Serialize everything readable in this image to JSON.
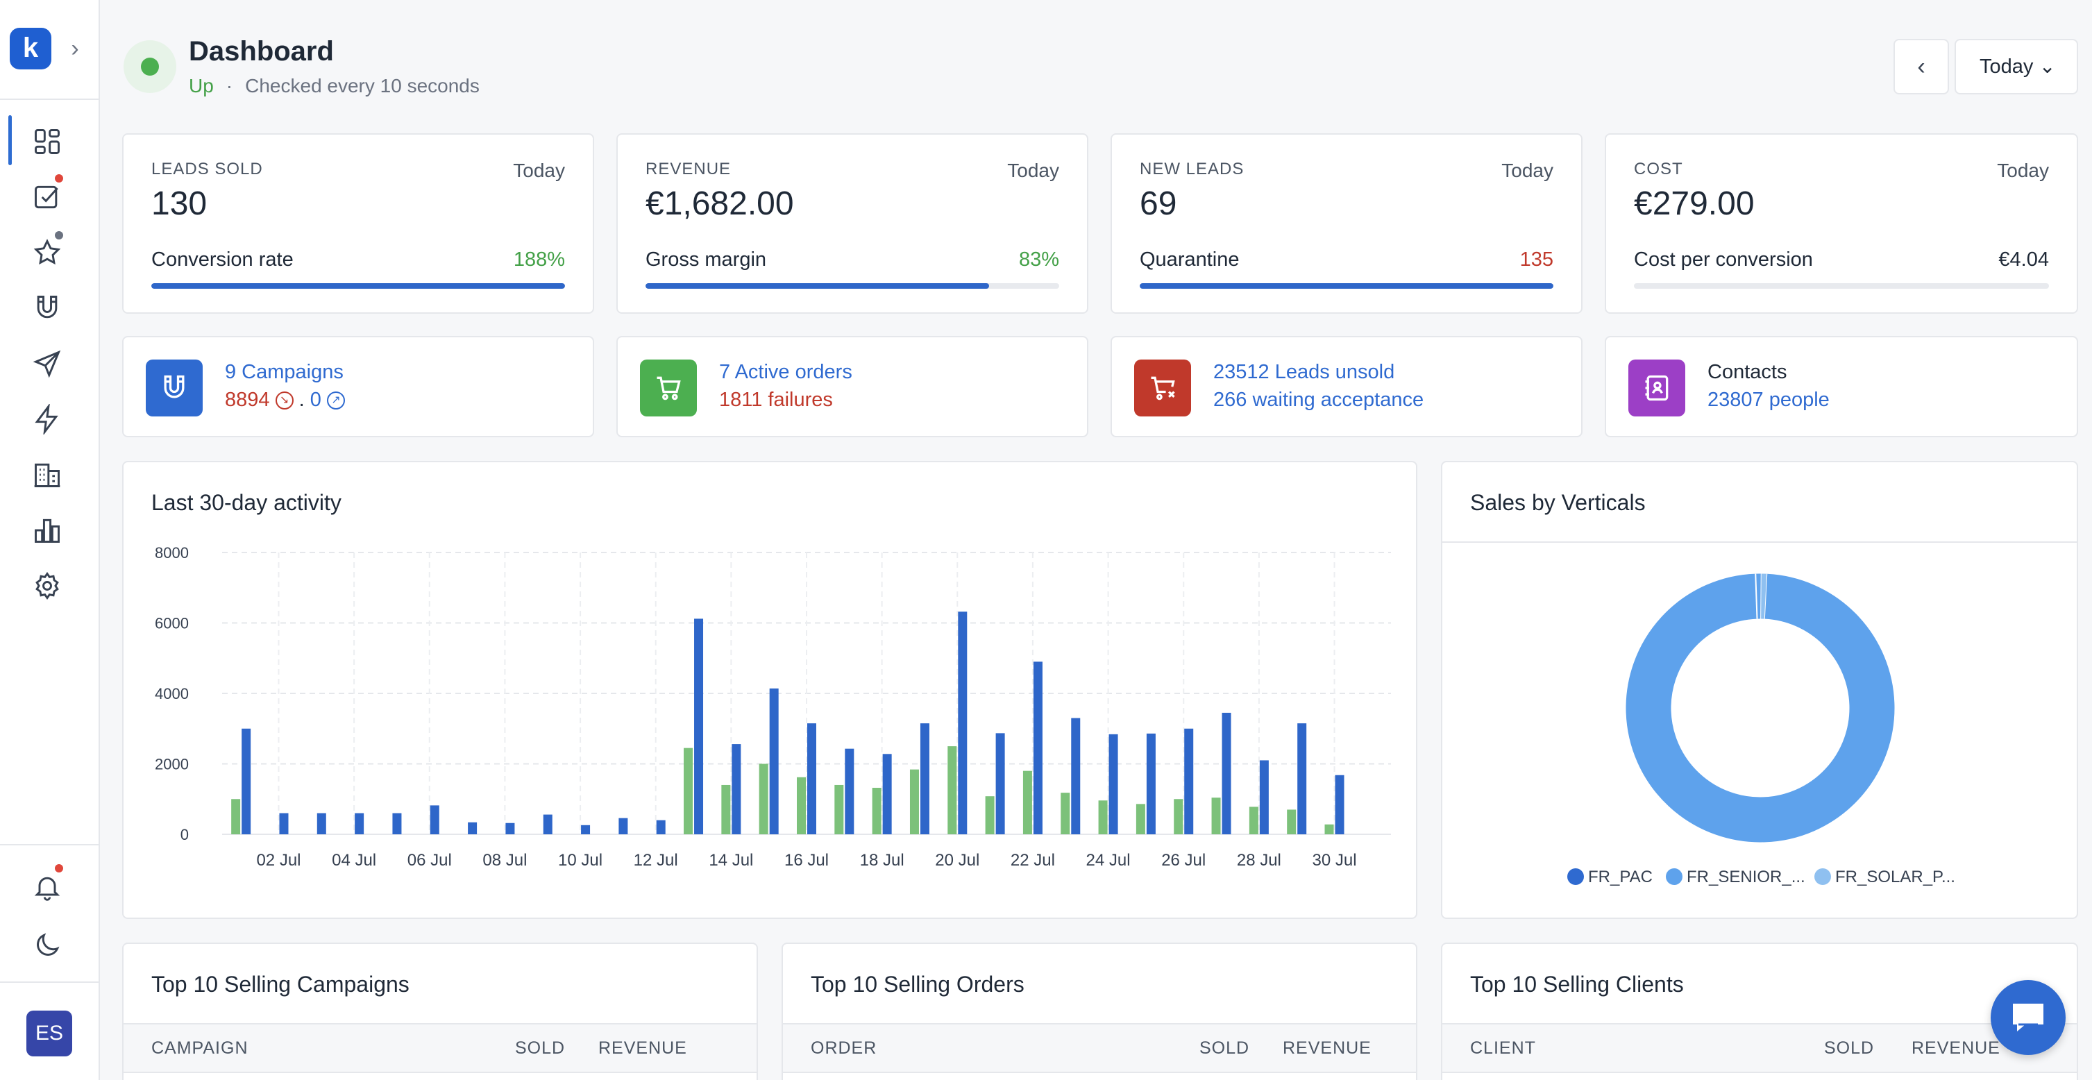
{
  "app": {
    "logo_letter": "k",
    "user_initials": "ES"
  },
  "header": {
    "title": "Dashboard",
    "status": "Up",
    "status_separator": "·",
    "check_text": "Checked every 10 seconds",
    "period_button": "Today ⌄",
    "prev_button": "‹"
  },
  "kpis": [
    {
      "label": "LEADS SOLD",
      "period": "Today",
      "value": "130",
      "sub_label": "Conversion rate",
      "sub_value": "188%",
      "sub_color": "#43a047",
      "progress": 1.0
    },
    {
      "label": "REVENUE",
      "period": "Today",
      "value": "€1,682.00",
      "sub_label": "Gross margin",
      "sub_value": "83%",
      "sub_color": "#43a047",
      "progress": 0.83
    },
    {
      "label": "NEW LEADS",
      "period": "Today",
      "value": "69",
      "sub_label": "Quarantine",
      "sub_value": "135",
      "sub_color": "#c0392b",
      "progress": 1.0
    },
    {
      "label": "COST",
      "period": "Today",
      "value": "€279.00",
      "sub_label": "Cost per conversion",
      "sub_value": "€4.04",
      "sub_color": "#1f2937",
      "progress": 0.0
    }
  ],
  "info_cards": {
    "campaigns": {
      "line1": "9 Campaigns",
      "count_down": "8894",
      "joiner": ".",
      "count_up": "0",
      "icon": "magnet-icon",
      "color": "#2f6ad0"
    },
    "orders": {
      "line1": "7 Active orders",
      "line2": "1811 failures",
      "icon": "cart-icon",
      "color": "#4caf50"
    },
    "unsold": {
      "line1": "23512 Leads unsold",
      "line2": "266 waiting acceptance",
      "icon": "cart-x-icon",
      "color": "#c0392b"
    },
    "contacts": {
      "line1": "Contacts",
      "line2": "23807 people",
      "icon": "contact-book-icon",
      "color": "#9c3fc6"
    }
  },
  "activity": {
    "title": "Last 30-day activity"
  },
  "verticals": {
    "title": "Sales by Verticals",
    "legend": [
      {
        "name": "FR_PAC",
        "color": "#2f6ad0"
      },
      {
        "name": "FR_SENIOR_...",
        "color": "#5ea2ec"
      },
      {
        "name": "FR_SOLAR_P...",
        "color": "#8fc0f0"
      }
    ]
  },
  "tables": {
    "campaigns": {
      "title": "Top 10 Selling Campaigns",
      "cols": [
        "CAMPAIGN",
        "SOLD",
        "REVENUE"
      ]
    },
    "orders": {
      "title": "Top 10 Selling Orders",
      "cols": [
        "ORDER",
        "SOLD",
        "REVENUE"
      ]
    },
    "clients": {
      "title": "Top 10 Selling Clients",
      "cols": [
        "CLIENT",
        "SOLD",
        "REVENUE"
      ]
    }
  },
  "colors": {
    "accent": "#2f6ad0",
    "green_series": "#7cc17a",
    "blue_series": "#2e66c9"
  },
  "chart_data": [
    {
      "type": "bar",
      "title": "Last 30-day activity",
      "ylim": [
        0,
        8000
      ],
      "yticks": [
        0,
        2000,
        4000,
        6000,
        8000
      ],
      "categories": [
        "01 Jul",
        "02 Jul",
        "03 Jul",
        "04 Jul",
        "05 Jul",
        "06 Jul",
        "07 Jul",
        "08 Jul",
        "09 Jul",
        "10 Jul",
        "11 Jul",
        "12 Jul",
        "13 Jul",
        "14 Jul",
        "15 Jul",
        "16 Jul",
        "17 Jul",
        "18 Jul",
        "19 Jul",
        "20 Jul",
        "21 Jul",
        "22 Jul",
        "23 Jul",
        "24 Jul",
        "25 Jul",
        "26 Jul",
        "27 Jul",
        "28 Jul",
        "29 Jul",
        "30 Jul",
        "31 Jul"
      ],
      "tick_labels": [
        "02 Jul",
        "04 Jul",
        "06 Jul",
        "08 Jul",
        "10 Jul",
        "12 Jul",
        "14 Jul",
        "16 Jul",
        "18 Jul",
        "20 Jul",
        "22 Jul",
        "24 Jul",
        "26 Jul",
        "28 Jul",
        "30 Jul"
      ],
      "series": [
        {
          "color": "#7cc17a",
          "values": [
            1000,
            0,
            0,
            0,
            0,
            0,
            0,
            0,
            0,
            0,
            0,
            0,
            2450,
            1400,
            2000,
            1620,
            1400,
            1320,
            1840,
            2500,
            1080,
            1800,
            1180,
            960,
            860,
            1000,
            1040,
            780,
            700,
            280,
            0
          ]
        },
        {
          "color": "#2e66c9",
          "values": [
            3000,
            600,
            600,
            600,
            600,
            820,
            340,
            320,
            560,
            260,
            460,
            400,
            6120,
            2560,
            4140,
            3150,
            2430,
            2280,
            3150,
            6320,
            2870,
            4900,
            3300,
            2840,
            2860,
            3000,
            3450,
            2100,
            3150,
            1680,
            0
          ]
        }
      ]
    },
    {
      "type": "pie",
      "title": "Sales by Verticals",
      "labels": [
        "FR_PAC",
        "FR_SENIOR_...",
        "FR_SOLAR_P..."
      ],
      "values": [
        98.6,
        0.7,
        0.7
      ]
    }
  ]
}
